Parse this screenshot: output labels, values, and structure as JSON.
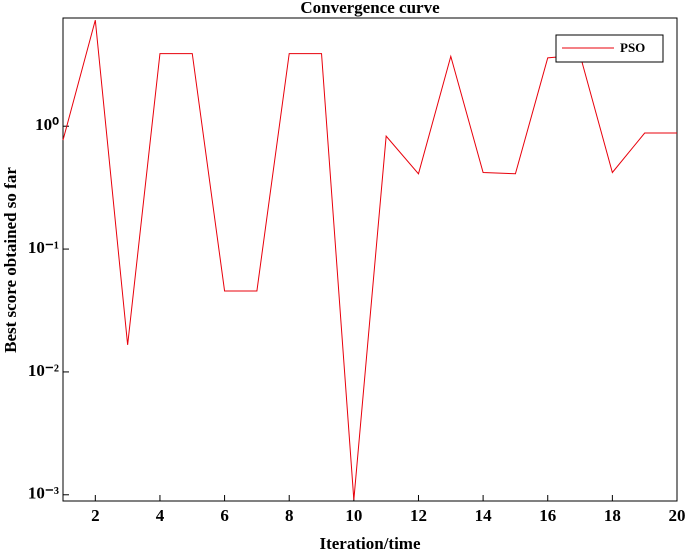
{
  "chart_data": {
    "type": "line",
    "title": "Convergence curve",
    "xlabel": "Iteration/time",
    "ylabel": "Best score obtained so far",
    "x": [
      1,
      2,
      3,
      4,
      5,
      6,
      7,
      8,
      9,
      10,
      11,
      12,
      13,
      14,
      15,
      16,
      17,
      18,
      19,
      20
    ],
    "series": [
      {
        "name": "PSO",
        "color": "#e8000b",
        "values": [
          0.77,
          7.3,
          0.0166,
          3.9,
          3.9,
          0.0456,
          0.0456,
          3.9,
          3.9,
          0.00091,
          0.83,
          0.41,
          3.7,
          0.42,
          0.41,
          3.6,
          3.8,
          0.42,
          0.88,
          0.88
        ]
      }
    ],
    "xlim": [
      1,
      20
    ],
    "xticks": [
      2,
      4,
      6,
      8,
      10,
      12,
      14,
      16,
      18,
      20
    ],
    "ylim": [
      0.00089,
      7.6
    ],
    "ylog": true,
    "yticks": [
      {
        "value": 0.001,
        "label": "10⁻³"
      },
      {
        "value": 0.01,
        "label": "10⁻²"
      },
      {
        "value": 0.1,
        "label": "10⁻¹"
      },
      {
        "value": 1,
        "label": "10⁰"
      }
    ],
    "legend": "upper right"
  }
}
